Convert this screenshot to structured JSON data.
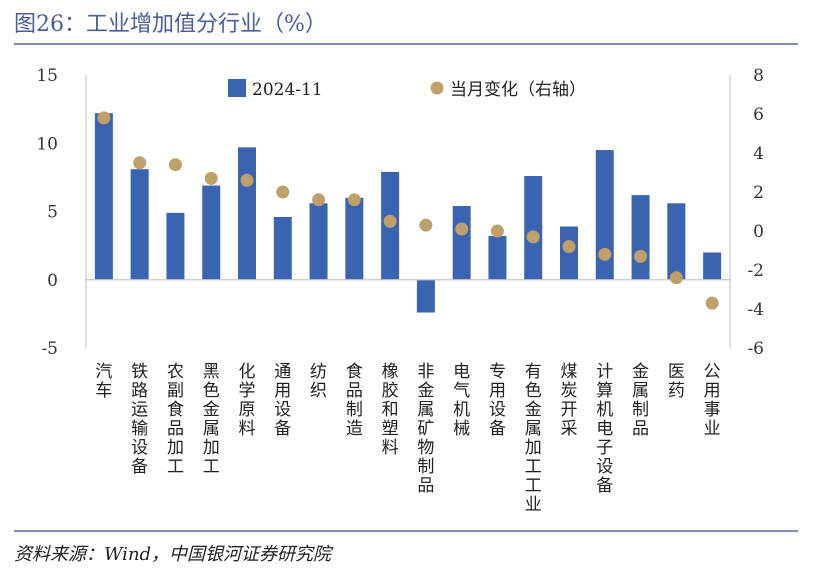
{
  "title": "图26：工业增加值分行业（%）",
  "source": "资料来源：Wind，中国银河证券研究院",
  "colors": {
    "bar": "#3a64b1",
    "dot": "#c0a06a",
    "title": "#4a5e9c",
    "rule": "#7d8cb8"
  },
  "chart_data": {
    "type": "bar",
    "categories": [
      "汽车",
      "铁路运输设备",
      "农副食品加工",
      "黑色金属加工",
      "化学原料",
      "通用设备",
      "纺织",
      "食品制造",
      "橡胶和塑料",
      "非金属矿物制品",
      "电气机械",
      "专用设备",
      "有色金属加工工业",
      "煤炭开采",
      "计算机电子设备",
      "金属制品",
      "医药",
      "公用事业"
    ],
    "series": [
      {
        "name": "2024-11",
        "type": "bar",
        "axis": "left",
        "values": [
          12.2,
          8.1,
          4.9,
          6.9,
          9.7,
          4.6,
          5.6,
          6.0,
          7.9,
          -2.4,
          5.4,
          3.2,
          7.6,
          3.9,
          9.5,
          6.2,
          5.6,
          2.0
        ]
      },
      {
        "name": "当月变化（右轴）",
        "type": "scatter",
        "axis": "right",
        "values": [
          5.8,
          3.5,
          3.4,
          2.7,
          2.6,
          2.0,
          1.6,
          1.6,
          0.5,
          0.3,
          0.1,
          0.0,
          -0.3,
          -0.8,
          -1.2,
          -1.3,
          -2.4,
          -3.7
        ]
      }
    ],
    "y_left": {
      "min": -5,
      "max": 15,
      "ticks": [
        15,
        10,
        5,
        0,
        -5
      ]
    },
    "y_right": {
      "min": -6,
      "max": 8,
      "ticks": [
        8,
        6,
        4,
        2,
        0,
        -2,
        -4,
        -6
      ]
    },
    "legend_position": "top"
  }
}
